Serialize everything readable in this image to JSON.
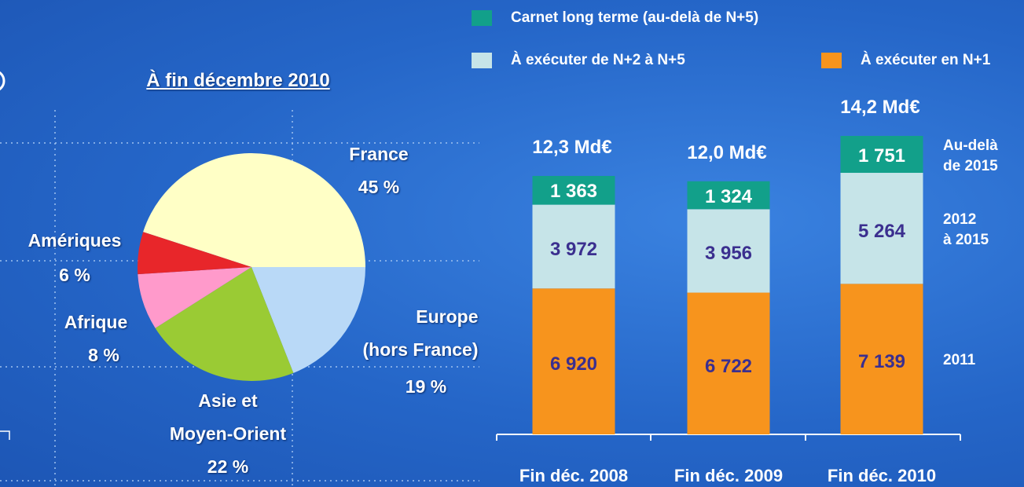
{
  "chart_data": [
    {
      "type": "pie",
      "title": "À fin décembre 2010",
      "categories": [
        "France",
        "Europe\n(hors France)",
        "Asie et\nMoyen-Orient",
        "Afrique",
        "Amériques"
      ],
      "values": [
        45,
        19,
        22,
        8,
        6
      ],
      "value_labels": [
        "45 %",
        "19 %",
        "22 %",
        "8 %",
        "6 %"
      ],
      "colors": [
        "#ffffc6",
        "#b9d9f7",
        "#9acb34",
        "#ff9acb",
        "#e8262a"
      ]
    },
    {
      "type": "stacked_bar",
      "categories": [
        "Fin déc. 2008",
        "Fin déc. 2009",
        "Fin déc. 2010"
      ],
      "series": [
        {
          "name": "À exécuter en N+1",
          "color": "#f7941d",
          "label_color": "#3b2f8f",
          "label": "2011",
          "values": [
            6920,
            6722,
            7139
          ],
          "value_labels": [
            "6 920",
            "6 722",
            "7 139"
          ]
        },
        {
          "name": "À exécuter de N+2 à N+5",
          "color": "#c6e4e8",
          "label_color": "#3b2f8f",
          "label": "2012\nà 2015",
          "values": [
            3972,
            3956,
            5264
          ],
          "value_labels": [
            "3 972",
            "3 956",
            "5 264"
          ]
        },
        {
          "name": "Carnet long terme (au-delà de N+5)",
          "color": "#12a08a",
          "label_color": "#ffffff",
          "label": "Au-delà\nde 2015",
          "values": [
            1363,
            1324,
            1751
          ],
          "value_labels": [
            "1 363",
            "1 324",
            "1 751"
          ]
        }
      ],
      "total_labels": [
        "12,3 Md€",
        "12,0 Md€",
        "14,2 Md€"
      ]
    }
  ]
}
